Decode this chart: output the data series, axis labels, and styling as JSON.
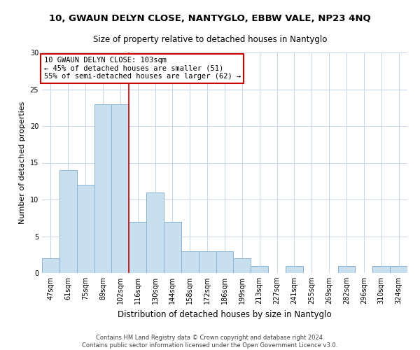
{
  "title": "10, GWAUN DELYN CLOSE, NANTYGLO, EBBW VALE, NP23 4NQ",
  "subtitle": "Size of property relative to detached houses in Nantyglo",
  "xlabel": "Distribution of detached houses by size in Nantyglo",
  "ylabel": "Number of detached properties",
  "bar_labels": [
    "47sqm",
    "61sqm",
    "75sqm",
    "89sqm",
    "102sqm",
    "116sqm",
    "130sqm",
    "144sqm",
    "158sqm",
    "172sqm",
    "186sqm",
    "199sqm",
    "213sqm",
    "227sqm",
    "241sqm",
    "255sqm",
    "269sqm",
    "282sqm",
    "296sqm",
    "310sqm",
    "324sqm"
  ],
  "bar_values": [
    2,
    14,
    12,
    23,
    23,
    7,
    11,
    7,
    3,
    3,
    3,
    2,
    1,
    0,
    1,
    0,
    0,
    1,
    0,
    1,
    1
  ],
  "bar_color": "#c8dff0",
  "bar_edge_color": "#8ab4d4",
  "ylim": [
    0,
    30
  ],
  "yticks": [
    0,
    5,
    10,
    15,
    20,
    25,
    30
  ],
  "vline_index": 4.5,
  "vline_color": "#cc0000",
  "annotation_line1": "10 GWAUN DELYN CLOSE: 103sqm",
  "annotation_line2": "← 45% of detached houses are smaller (51)",
  "annotation_line3": "55% of semi-detached houses are larger (62) →",
  "annotation_box_color": "#ffffff",
  "annotation_box_edge": "#cc0000",
  "footer_line1": "Contains HM Land Registry data © Crown copyright and database right 2024.",
  "footer_line2": "Contains public sector information licensed under the Open Government Licence v3.0.",
  "bg_color": "#ffffff",
  "grid_color": "#c8d4e8",
  "title_fontsize": 9.5,
  "subtitle_fontsize": 8.5,
  "ylabel_fontsize": 8,
  "xlabel_fontsize": 8.5,
  "tick_fontsize": 7,
  "ann_fontsize": 7.5,
  "footer_fontsize": 6
}
